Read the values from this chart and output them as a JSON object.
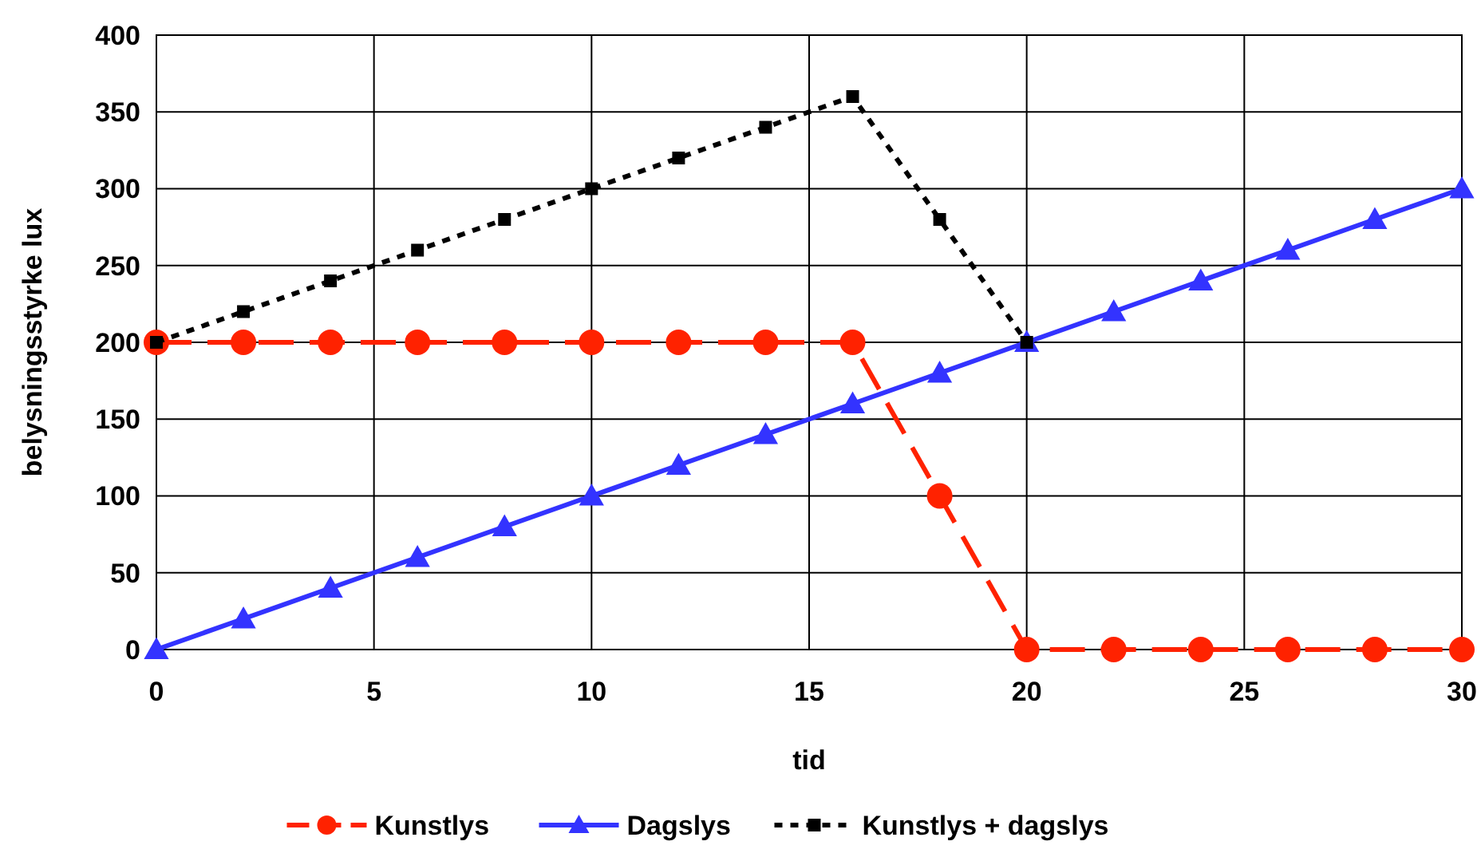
{
  "chart_data": {
    "type": "line",
    "xlabel": "tid",
    "ylabel": "belysningsstyrke lux",
    "xlim": [
      0,
      30
    ],
    "xticks": [
      0,
      5,
      10,
      15,
      20,
      25,
      30
    ],
    "ylim": [
      0,
      400
    ],
    "yticks": [
      0,
      50,
      100,
      150,
      200,
      250,
      300,
      350,
      400
    ],
    "grid": true,
    "legend": "bottom",
    "series": [
      {
        "name": "Kunstlys",
        "color": "#ff2200",
        "marker": "circle",
        "line_style": "dashed",
        "x": [
          0,
          2,
          4,
          6,
          8,
          10,
          12,
          14,
          16,
          18,
          20,
          22,
          24,
          26,
          28,
          30
        ],
        "values": [
          200,
          200,
          200,
          200,
          200,
          200,
          200,
          200,
          200,
          100,
          0,
          0,
          0,
          0,
          0,
          0
        ]
      },
      {
        "name": "Dagslys",
        "color": "#3333ff",
        "marker": "triangle",
        "line_style": "solid",
        "x": [
          0,
          2,
          4,
          6,
          8,
          10,
          12,
          14,
          16,
          18,
          20,
          22,
          24,
          26,
          28,
          30
        ],
        "values": [
          0,
          20,
          40,
          60,
          80,
          100,
          120,
          140,
          160,
          180,
          200,
          220,
          240,
          260,
          280,
          300
        ]
      },
      {
        "name": "Kunstlys + dagslys",
        "color": "#000000",
        "marker": "square",
        "line_style": "dotted",
        "x": [
          0,
          2,
          4,
          6,
          8,
          10,
          12,
          14,
          16,
          18,
          20
        ],
        "values": [
          200,
          220,
          240,
          260,
          280,
          300,
          320,
          340,
          360,
          280,
          200
        ]
      }
    ]
  }
}
